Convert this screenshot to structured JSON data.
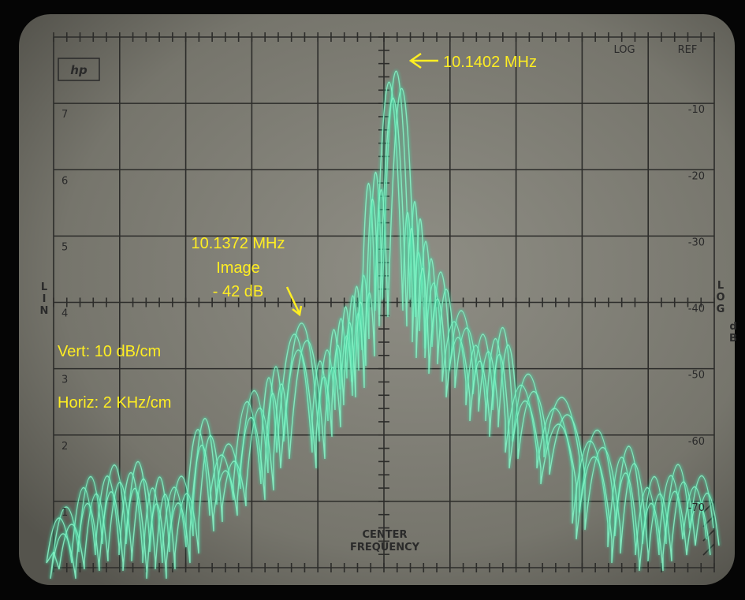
{
  "screen": {
    "logo": "hp",
    "top_right_labels": [
      "LOG",
      "REF"
    ],
    "lin_scale_labels": [
      "7",
      "6",
      "5",
      "4",
      "3",
      "2",
      "1"
    ],
    "log_scale_labels": [
      "-10",
      "-20",
      "-30",
      "-40",
      "-50",
      "-60",
      "-70"
    ],
    "left_side_letters": [
      "L",
      "I",
      "N"
    ],
    "right_side_letters": [
      "L",
      "O",
      "G"
    ],
    "right_side_unit": [
      "d",
      "B"
    ],
    "center_label": [
      "CENTER",
      "FREQUENCY"
    ]
  },
  "annotations": {
    "main_peak": "10.1402 MHz",
    "image_peak": [
      "10.1372 MHz",
      "Image",
      "- 42 dB"
    ],
    "vertical_scale": "Vert: 10 dB/cm",
    "horizontal_scale": "Horiz: 2 KHz/cm"
  }
}
